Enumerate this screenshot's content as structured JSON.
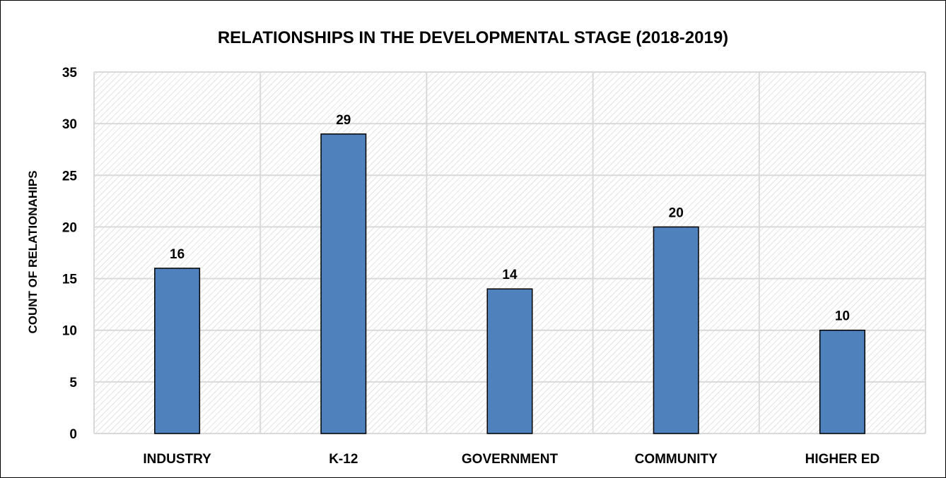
{
  "chart_data": {
    "type": "bar",
    "title": "RELATIONSHIPS IN THE DEVELOPMENTAL STAGE (2018-2019)",
    "xlabel": "",
    "ylabel": "COUNT OF RELATIONAHIPS",
    "categories": [
      "INDUSTRY",
      "K-12",
      "GOVERNMENT",
      "COMMUNITY",
      "HIGHER ED"
    ],
    "values": [
      16,
      29,
      14,
      20,
      10
    ],
    "data_labels": [
      "16",
      "29",
      "14",
      "20",
      "10"
    ],
    "ylim": [
      0,
      35
    ],
    "yticks": [
      0,
      5,
      10,
      15,
      20,
      25,
      30,
      35
    ],
    "grid": true,
    "legend": "none",
    "colors": {
      "bar": "#4f81bd",
      "bar_border": "#000000",
      "grid": "#d9d9d9",
      "hatch": "#c8c8c8"
    }
  }
}
